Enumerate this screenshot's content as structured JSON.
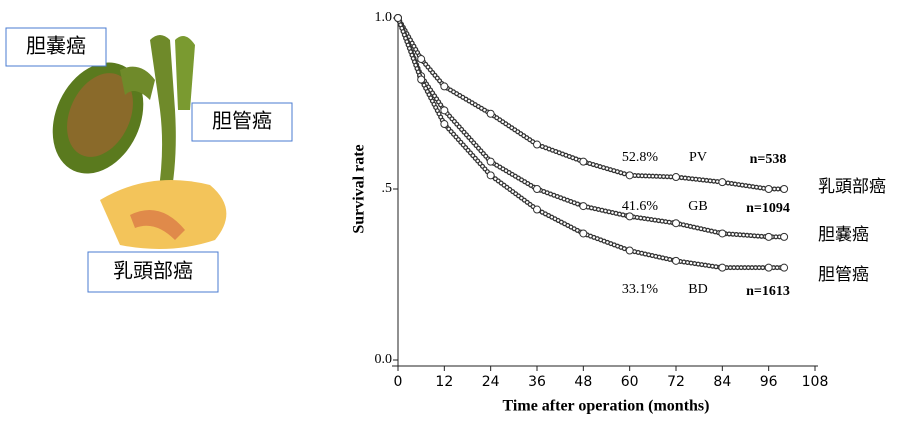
{
  "figure": {
    "labels": [
      "胆嚢癌",
      "胆管癌",
      "乳頭部癌"
    ]
  },
  "chart_data": {
    "type": "line",
    "y_label": "Survival rate",
    "x_label": "Time after operation (months)",
    "x": [
      0,
      6,
      12,
      24,
      36,
      48,
      60,
      72,
      84,
      96,
      100
    ],
    "series": [
      {
        "name": "PV",
        "rate_label": "52.8%",
        "n_label": "n=538",
        "label": "乳頭部癌",
        "color": "#333333",
        "values": [
          1.0,
          0.88,
          0.8,
          0.72,
          0.63,
          0.58,
          0.54,
          0.535,
          0.52,
          0.5,
          0.5
        ]
      },
      {
        "name": "GB",
        "rate_label": "41.6%",
        "n_label": "n=1094",
        "label": "胆嚢癌",
        "color": "#333333",
        "values": [
          1.0,
          0.83,
          0.73,
          0.58,
          0.5,
          0.45,
          0.42,
          0.4,
          0.37,
          0.36,
          0.36
        ]
      },
      {
        "name": "BD",
        "rate_label": "33.1%",
        "n_label": "n=1613",
        "label": "胆管癌",
        "color": "#333333",
        "values": [
          1.0,
          0.82,
          0.69,
          0.54,
          0.44,
          0.37,
          0.32,
          0.29,
          0.27,
          0.27,
          0.27
        ]
      }
    ],
    "xlim": [
      0,
      108
    ],
    "xticks": [
      0,
      12,
      24,
      36,
      48,
      60,
      72,
      84,
      96,
      108
    ],
    "ylim": [
      0,
      1
    ],
    "yticks": [
      {
        "value": 0,
        "label": "0.0"
      },
      {
        "value": 0.5,
        "label": ".5"
      },
      {
        "value": 1,
        "label": "1.0"
      }
    ]
  }
}
